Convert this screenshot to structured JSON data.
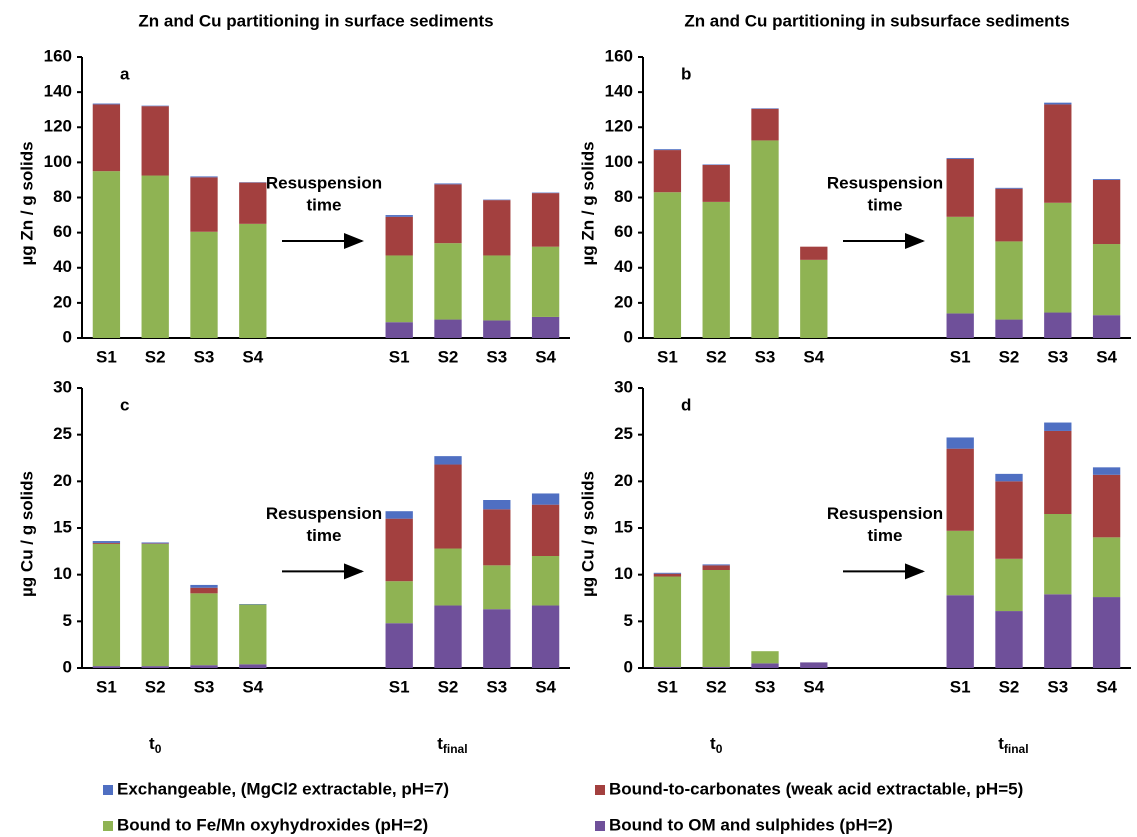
{
  "chart_data": [
    {
      "type": "bar",
      "stacked": true,
      "title": "Zn and Cu partitioning in surface sediments",
      "label": "a",
      "ylabel": "µg Zn / g solids",
      "annotation": [
        "Resuspension",
        "time"
      ],
      "categories": [
        "S1",
        "S2",
        "S3",
        "S4",
        null,
        null,
        "S1",
        "S2",
        "S3",
        "S4"
      ],
      "ylim": [
        0,
        160
      ],
      "yticks": [
        0,
        20,
        40,
        60,
        80,
        100,
        120,
        140,
        160
      ],
      "series": [
        {
          "name": "Exchangeable, (MgCl2 extractable, pH=7)",
          "color": "#4f6fc2",
          "values": [
            0.5,
            0.3,
            0.5,
            0.2,
            null,
            null,
            1,
            0.5,
            0.3,
            0.3
          ]
        },
        {
          "name": "Bound-to-carbonates (weak acid extractable, pH=5)",
          "color": "#a3403f",
          "values": [
            38,
            39.5,
            31,
            23.5,
            null,
            null,
            22,
            33.5,
            31.5,
            30.5
          ]
        },
        {
          "name": "Bound to Fe/Mn oxyhydroxides  (pH=2)",
          "color": "#8fb353",
          "values": [
            95,
            92.5,
            60.5,
            65,
            null,
            null,
            38,
            43.5,
            37,
            40
          ]
        },
        {
          "name": "Bound to OM and sulphides (pH=2)",
          "color": "#6f509a",
          "values": [
            0,
            0,
            0,
            0,
            null,
            null,
            9,
            10.5,
            10,
            12
          ]
        }
      ]
    },
    {
      "type": "bar",
      "stacked": true,
      "title": "Zn and Cu partitioning in subsurface sediments",
      "label": "b",
      "ylabel": "µg Zn / g solids",
      "annotation": [
        "Resuspension",
        "time"
      ],
      "categories": [
        "S1",
        "S2",
        "S3",
        "S4",
        null,
        null,
        "S1",
        "S2",
        "S3",
        "S4"
      ],
      "ylim": [
        0,
        160
      ],
      "yticks": [
        0,
        20,
        40,
        60,
        80,
        100,
        120,
        140,
        160
      ],
      "series": [
        {
          "name": "Exchangeable, (MgCl2 extractable, pH=7)",
          "color": "#4f6fc2",
          "values": [
            0.5,
            0.3,
            0.3,
            0,
            null,
            null,
            0.5,
            0.5,
            1,
            0.5
          ]
        },
        {
          "name": "Bound-to-carbonates (weak acid extractable, pH=5)",
          "color": "#a3403f",
          "values": [
            24,
            21,
            18,
            7.5,
            null,
            null,
            33,
            30,
            56,
            36.5
          ]
        },
        {
          "name": "Bound to Fe/Mn oxyhydroxides  (pH=2)",
          "color": "#8fb353",
          "values": [
            83,
            77.5,
            112.5,
            44.5,
            null,
            null,
            55,
            44.5,
            62.5,
            40.5
          ]
        },
        {
          "name": "Bound to OM and sulphides (pH=2)",
          "color": "#6f509a",
          "values": [
            0,
            0,
            0,
            0,
            null,
            null,
            14,
            10.5,
            14.5,
            13
          ]
        }
      ]
    },
    {
      "type": "bar",
      "stacked": true,
      "label": "c",
      "ylabel": "µg Cu / g solids",
      "annotation": [
        "Resuspension",
        "time"
      ],
      "group_labels": [
        {
          "text": "t",
          "sub": "0"
        },
        {
          "text": "t",
          "sub": "final"
        }
      ],
      "categories": [
        "S1",
        "S2",
        "S3",
        "S4",
        null,
        null,
        "S1",
        "S2",
        "S3",
        "S4"
      ],
      "ylim": [
        0,
        30
      ],
      "yticks": [
        0,
        5,
        10,
        15,
        20,
        25,
        30
      ],
      "series": [
        {
          "name": "Exchangeable, (MgCl2 extractable, pH=7)",
          "color": "#4f6fc2",
          "values": [
            0.2,
            0.1,
            0.3,
            0.05,
            null,
            null,
            0.8,
            0.9,
            1.0,
            1.2
          ]
        },
        {
          "name": "Bound-to-carbonates (weak acid extractable, pH=5)",
          "color": "#a3403f",
          "values": [
            0.1,
            0.05,
            0.6,
            0,
            null,
            null,
            6.7,
            9.0,
            6.0,
            5.5
          ]
        },
        {
          "name": "Bound to Fe/Mn oxyhydroxides  (pH=2)",
          "color": "#8fb353",
          "values": [
            13.1,
            13.1,
            7.7,
            6.4,
            null,
            null,
            4.5,
            6.1,
            4.7,
            5.3
          ]
        },
        {
          "name": "Bound to OM and sulphides (pH=2)",
          "color": "#6f509a",
          "values": [
            0.2,
            0.2,
            0.3,
            0.4,
            null,
            null,
            4.8,
            6.7,
            6.3,
            6.7
          ]
        }
      ]
    },
    {
      "type": "bar",
      "stacked": true,
      "label": "d",
      "ylabel": "µg Cu / g solids",
      "annotation": [
        "Resuspension",
        "time"
      ],
      "group_labels": [
        {
          "text": "t",
          "sub": "0"
        },
        {
          "text": "t",
          "sub": "final"
        }
      ],
      "categories": [
        "S1",
        "S2",
        "S3",
        "S4",
        null,
        null,
        "S1",
        "S2",
        "S3",
        "S4"
      ],
      "ylim": [
        0,
        30
      ],
      "yticks": [
        0,
        5,
        10,
        15,
        20,
        25,
        30
      ],
      "series": [
        {
          "name": "Exchangeable, (MgCl2 extractable, pH=7)",
          "color": "#4f6fc2",
          "values": [
            0.1,
            0.1,
            0,
            0,
            null,
            null,
            1.2,
            0.8,
            0.9,
            0.8
          ]
        },
        {
          "name": "Bound-to-carbonates (weak acid extractable, pH=5)",
          "color": "#a3403f",
          "values": [
            0.3,
            0.5,
            0,
            0,
            null,
            null,
            8.8,
            8.3,
            8.9,
            6.7
          ]
        },
        {
          "name": "Bound to Fe/Mn oxyhydroxides  (pH=2)",
          "color": "#8fb353",
          "values": [
            9.7,
            10.4,
            1.3,
            0,
            null,
            null,
            6.9,
            5.6,
            8.6,
            6.4
          ]
        },
        {
          "name": "Bound to OM and sulphides (pH=2)",
          "color": "#6f509a",
          "values": [
            0.1,
            0.1,
            0.5,
            0.6,
            null,
            null,
            7.8,
            6.1,
            7.9,
            7.6
          ]
        }
      ]
    }
  ]
}
